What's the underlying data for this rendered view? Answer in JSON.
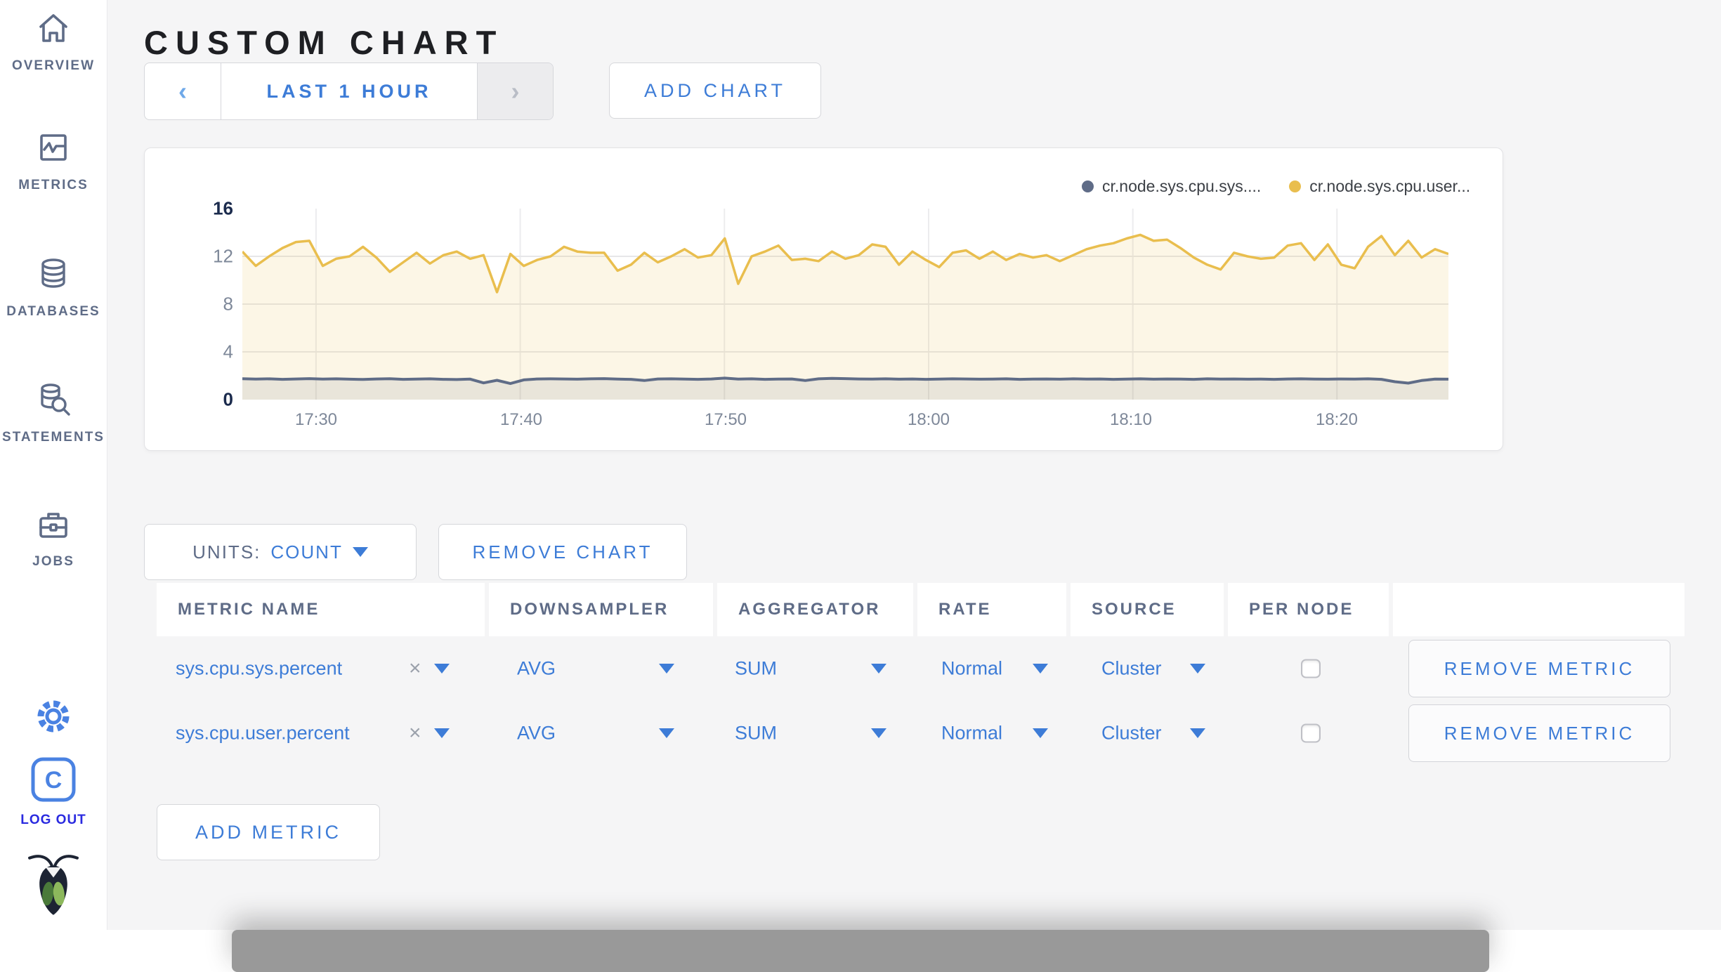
{
  "sidebar": {
    "items": [
      {
        "id": "overview",
        "label": "OVERVIEW"
      },
      {
        "id": "metrics",
        "label": "METRICS"
      },
      {
        "id": "databases",
        "label": "DATABASES"
      },
      {
        "id": "statements",
        "label": "STATEMENTS"
      },
      {
        "id": "jobs",
        "label": "JOBS"
      }
    ],
    "logout_label": "LOG OUT"
  },
  "header": {
    "title": "CUSTOM CHART",
    "time_selector": {
      "prev": "‹",
      "label": "LAST 1 HOUR",
      "next": "›"
    },
    "add_chart_label": "ADD CHART"
  },
  "chart_data": {
    "type": "line",
    "title": "",
    "xlabel": "",
    "ylabel": "",
    "ylim": [
      0,
      16
    ],
    "grid": true,
    "legend_position": "top-right",
    "x_ticks": [
      "17:30",
      "17:40",
      "17:50",
      "18:00",
      "18:10",
      "18:20"
    ],
    "y_ticks": [
      "16",
      "12",
      "8",
      "4",
      "0"
    ],
    "series": [
      {
        "name": "cr.node.sys.cpu.sys....",
        "color": "#5f6c87",
        "fill": "rgba(95,108,135,0.12)",
        "stroke_width": 4,
        "values": [
          1.75,
          1.72,
          1.74,
          1.7,
          1.73,
          1.76,
          1.72,
          1.74,
          1.71,
          1.69,
          1.73,
          1.75,
          1.7,
          1.72,
          1.74,
          1.7,
          1.68,
          1.72,
          1.4,
          1.62,
          1.35,
          1.65,
          1.73,
          1.74,
          1.73,
          1.71,
          1.74,
          1.76,
          1.72,
          1.7,
          1.6,
          1.73,
          1.74,
          1.72,
          1.7,
          1.73,
          1.8,
          1.72,
          1.74,
          1.7,
          1.72,
          1.73,
          1.6,
          1.74,
          1.78,
          1.76,
          1.73,
          1.72,
          1.74,
          1.71,
          1.73,
          1.7,
          1.72,
          1.74,
          1.73,
          1.71,
          1.72,
          1.74,
          1.7,
          1.72,
          1.73,
          1.71,
          1.74,
          1.72,
          1.73,
          1.7,
          1.72,
          1.74,
          1.71,
          1.73,
          1.72,
          1.7,
          1.74,
          1.72,
          1.73,
          1.71,
          1.72,
          1.7,
          1.73,
          1.74,
          1.72,
          1.71,
          1.73,
          1.72,
          1.74,
          1.7,
          1.5,
          1.38,
          1.6,
          1.72,
          1.71
        ]
      },
      {
        "name": "cr.node.sys.cpu.user...",
        "color": "#e9be4e",
        "fill": "rgba(233,190,78,0.14)",
        "stroke_width": 3.5,
        "values": [
          12.4,
          11.2,
          12.0,
          12.7,
          13.2,
          13.3,
          11.2,
          11.8,
          12.0,
          12.8,
          11.9,
          10.7,
          11.5,
          12.3,
          11.4,
          12.1,
          12.4,
          11.8,
          12.1,
          9.0,
          12.2,
          11.2,
          11.7,
          12.0,
          12.8,
          12.4,
          12.3,
          12.3,
          10.8,
          11.3,
          12.3,
          11.5,
          12.0,
          12.6,
          11.9,
          12.1,
          13.5,
          9.7,
          12.0,
          12.4,
          12.9,
          11.7,
          11.8,
          11.6,
          12.4,
          11.8,
          12.1,
          13.0,
          12.8,
          11.3,
          12.4,
          11.7,
          11.1,
          12.3,
          12.5,
          11.8,
          12.4,
          11.7,
          12.2,
          11.9,
          12.1,
          11.6,
          12.1,
          12.6,
          12.9,
          13.1,
          13.5,
          13.8,
          13.3,
          13.4,
          12.7,
          11.9,
          11.3,
          10.9,
          12.3,
          12.0,
          11.8,
          11.9,
          12.9,
          13.1,
          11.7,
          13.0,
          11.3,
          11.0,
          12.8,
          13.7,
          12.1,
          13.3,
          11.9,
          12.6,
          12.2
        ]
      }
    ]
  },
  "controls": {
    "units_label": "UNITS:",
    "units_value": "COUNT",
    "remove_chart_label": "REMOVE CHART",
    "add_metric_label": "ADD METRIC"
  },
  "metrics_table": {
    "columns": [
      "METRIC NAME",
      "DOWNSAMPLER",
      "AGGREGATOR",
      "RATE",
      "SOURCE",
      "PER NODE"
    ],
    "clear_symbol": "×",
    "rows": [
      {
        "metric_name": "sys.cpu.sys.percent",
        "downsampler": "AVG",
        "aggregator": "SUM",
        "rate": "Normal",
        "source": "Cluster",
        "per_node_checked": false,
        "remove_label": "REMOVE METRIC"
      },
      {
        "metric_name": "sys.cpu.user.percent",
        "downsampler": "AVG",
        "aggregator": "SUM",
        "rate": "Normal",
        "source": "Cluster",
        "per_node_checked": false,
        "remove_label": "REMOVE METRIC"
      }
    ]
  },
  "colors": {
    "accent_blue": "#3d7cd7",
    "slate": "#5f6c87",
    "series_yellow": "#e9be4e",
    "logout_blue": "#2a2ae0",
    "page_bg": "#f5f5f6"
  }
}
